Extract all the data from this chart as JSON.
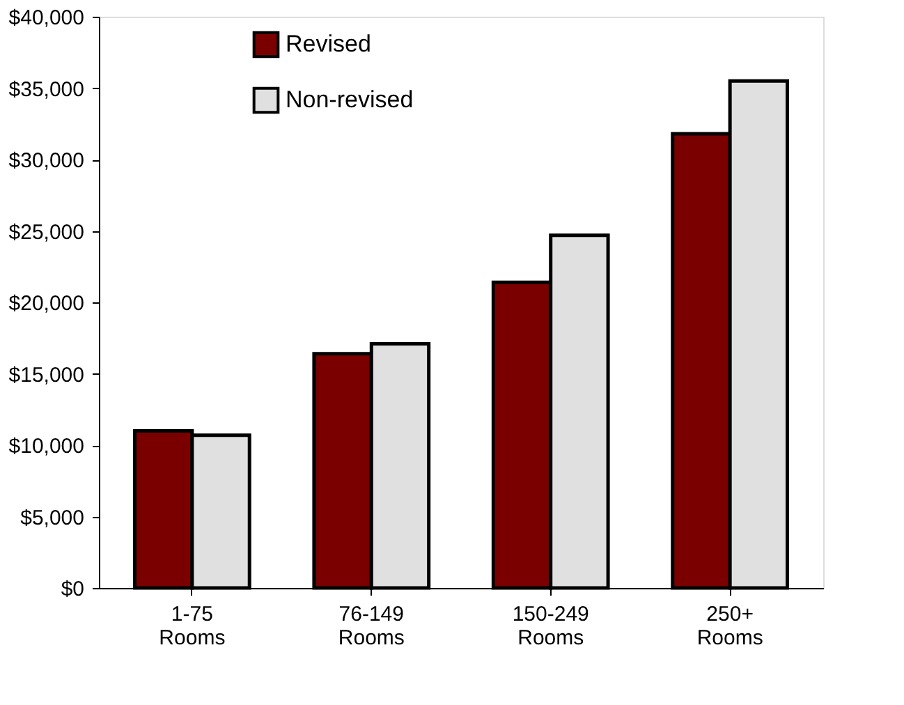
{
  "chart_data": {
    "type": "bar",
    "categories": [
      "1-75 Rooms",
      "76-149 Rooms",
      "150-249 Rooms",
      "250+ Rooms"
    ],
    "series": [
      {
        "name": "Revised",
        "color": "#7a0000",
        "values": [
          11000,
          16400,
          21400,
          31800
        ]
      },
      {
        "name": "Non-revised",
        "color": "#e0e0e0",
        "values": [
          10700,
          17100,
          24700,
          35500
        ]
      }
    ],
    "ylim": [
      0,
      40000
    ],
    "yticks": [
      {
        "value": 0,
        "label": "$0"
      },
      {
        "value": 5000,
        "label": "$5,000"
      },
      {
        "value": 10000,
        "label": "$10,000"
      },
      {
        "value": 15000,
        "label": "$15,000"
      },
      {
        "value": 20000,
        "label": "$20,000"
      },
      {
        "value": 25000,
        "label": "$25,000"
      },
      {
        "value": 30000,
        "label": "$30,000"
      },
      {
        "value": 35000,
        "label": "$35,000"
      },
      {
        "value": 40000,
        "label": "$40,000"
      }
    ],
    "grid": false,
    "legend": "top left"
  }
}
